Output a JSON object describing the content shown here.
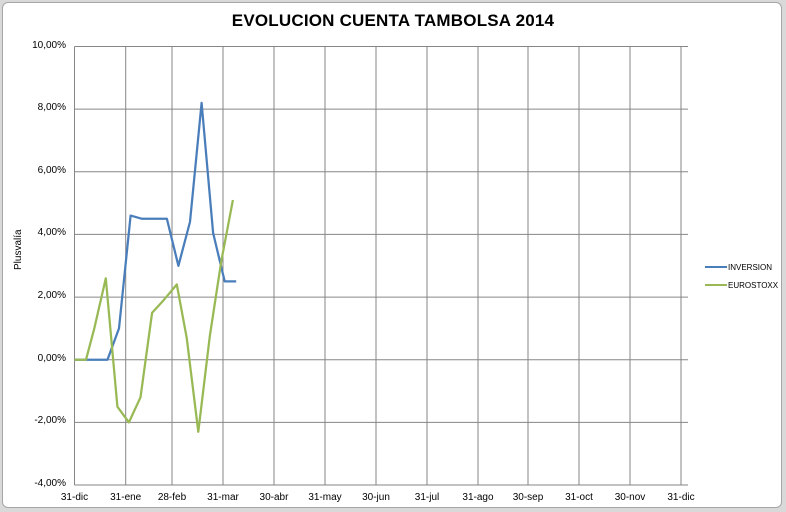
{
  "chart_data": {
    "type": "line",
    "title": "EVOLUCION CUENTA TAMBOLSA 2014",
    "xlabel": "",
    "ylabel": "Plusvalía",
    "ylim": [
      -0.04,
      0.1
    ],
    "y_ticks": [
      "10,00%",
      "8,00%",
      "6,00%",
      "4,00%",
      "2,00%",
      "0,00%",
      "-2,00%",
      "-4,00%"
    ],
    "x_ticks": [
      "31-dic",
      "31-ene",
      "28-feb",
      "31-mar",
      "30-abr",
      "31-may",
      "30-jun",
      "31-jul",
      "31-ago",
      "30-sep",
      "31-oct",
      "30-nov",
      "31-dic"
    ],
    "grid": true,
    "legend_position": "right",
    "x_day_offsets": [
      0,
      7,
      14,
      21,
      28,
      35,
      42,
      49,
      56,
      63,
      70,
      77,
      84,
      91,
      98
    ],
    "series": [
      {
        "name": "INVERSION",
        "color": "#4a7ebb",
        "values": [
          0.0,
          0.0,
          0.0,
          0.0,
          1.0,
          4.6,
          4.5,
          4.5,
          4.5,
          3.0,
          4.4,
          8.2,
          4.05,
          2.5,
          2.5
        ],
        "x": [
          0,
          7,
          14,
          20,
          27,
          34,
          41,
          49,
          56,
          63,
          70,
          77,
          84,
          91,
          98
        ]
      },
      {
        "name": "EUROSTOXX",
        "color": "#98b954",
        "values": [
          0.0,
          0.0,
          1.0,
          2.6,
          -1.5,
          -2.0,
          -1.2,
          1.5,
          1.9,
          2.4,
          0.7,
          -2.3,
          0.75,
          3.15,
          5.1
        ],
        "x": [
          0,
          7,
          12,
          19,
          26,
          33,
          40,
          47,
          54,
          62,
          68,
          75,
          82,
          89,
          96
        ]
      }
    ],
    "units": "%"
  },
  "legend": {
    "items": [
      {
        "label": "INVERSION",
        "color": "#4a7ebb"
      },
      {
        "label": "EUROSTOXX",
        "color": "#98b954"
      }
    ]
  }
}
